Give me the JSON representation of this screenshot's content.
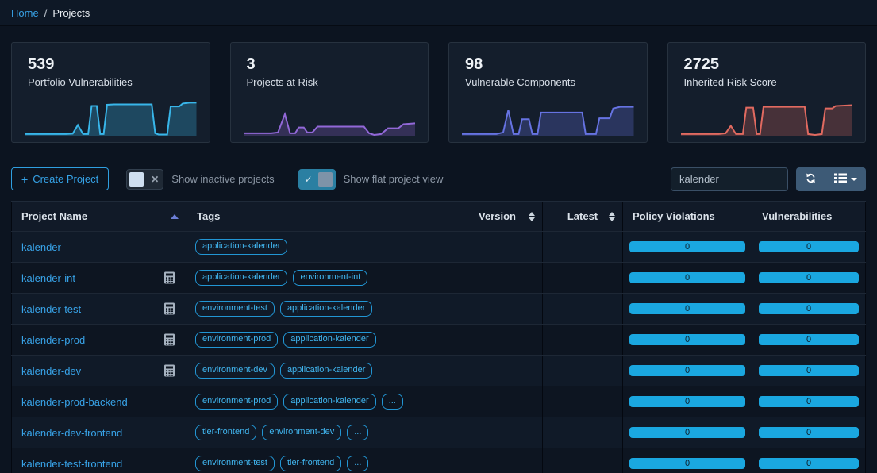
{
  "breadcrumb": {
    "home": "Home",
    "separator": "/",
    "current": "Projects"
  },
  "cards": [
    {
      "value": "539",
      "label": "Portfolio Vulnerabilities"
    },
    {
      "value": "3",
      "label": "Projects at Risk"
    },
    {
      "value": "98",
      "label": "Vulnerable Components"
    },
    {
      "value": "2725",
      "label": "Inherited Risk Score"
    }
  ],
  "chart_data": [
    {
      "type": "area",
      "series_label": "Portfolio Vulnerabilities",
      "color": "#38b6ea",
      "fill_opacity": 0.28,
      "x_range": [
        0,
        100
      ],
      "y_range": [
        0,
        100
      ],
      "points": [
        [
          0,
          4
        ],
        [
          24,
          4
        ],
        [
          28,
          5
        ],
        [
          31,
          26
        ],
        [
          34,
          4
        ],
        [
          37,
          4
        ],
        [
          39,
          72
        ],
        [
          42,
          72
        ],
        [
          44,
          4
        ],
        [
          46,
          4
        ],
        [
          48,
          75
        ],
        [
          52,
          76
        ],
        [
          74,
          76
        ],
        [
          76,
          6
        ],
        [
          78,
          3
        ],
        [
          83,
          3
        ],
        [
          85,
          71
        ],
        [
          90,
          71
        ],
        [
          92,
          78
        ],
        [
          96,
          80
        ],
        [
          100,
          80
        ]
      ]
    },
    {
      "type": "area",
      "series_label": "Projects at Risk",
      "color": "#9268d8",
      "fill_opacity": 0.25,
      "x_range": [
        0,
        100
      ],
      "y_range": [
        0,
        100
      ],
      "points": [
        [
          0,
          6
        ],
        [
          16,
          6
        ],
        [
          20,
          8
        ],
        [
          24,
          52
        ],
        [
          27,
          6
        ],
        [
          30,
          6
        ],
        [
          32,
          20
        ],
        [
          35,
          20
        ],
        [
          37,
          8
        ],
        [
          40,
          8
        ],
        [
          43,
          22
        ],
        [
          70,
          22
        ],
        [
          73,
          6
        ],
        [
          76,
          2
        ],
        [
          80,
          4
        ],
        [
          84,
          18
        ],
        [
          90,
          18
        ],
        [
          93,
          28
        ],
        [
          100,
          30
        ]
      ]
    },
    {
      "type": "area",
      "series_label": "Vulnerable Components",
      "color": "#6673e2",
      "fill_opacity": 0.28,
      "x_range": [
        0,
        100
      ],
      "y_range": [
        0,
        100
      ],
      "points": [
        [
          0,
          4
        ],
        [
          20,
          4
        ],
        [
          24,
          8
        ],
        [
          27,
          62
        ],
        [
          30,
          4
        ],
        [
          33,
          4
        ],
        [
          35,
          40
        ],
        [
          39,
          40
        ],
        [
          41,
          4
        ],
        [
          44,
          4
        ],
        [
          46,
          56
        ],
        [
          70,
          56
        ],
        [
          72,
          4
        ],
        [
          76,
          4
        ],
        [
          78,
          4
        ],
        [
          80,
          42
        ],
        [
          86,
          42
        ],
        [
          88,
          66
        ],
        [
          92,
          70
        ],
        [
          100,
          70
        ]
      ]
    },
    {
      "type": "area",
      "series_label": "Inherited Risk Score",
      "color": "#e16a60",
      "fill_opacity": 0.25,
      "x_range": [
        0,
        100
      ],
      "y_range": [
        0,
        100
      ],
      "points": [
        [
          0,
          4
        ],
        [
          22,
          4
        ],
        [
          26,
          6
        ],
        [
          29,
          24
        ],
        [
          32,
          4
        ],
        [
          36,
          4
        ],
        [
          38,
          68
        ],
        [
          42,
          68
        ],
        [
          44,
          4
        ],
        [
          46,
          4
        ],
        [
          48,
          70
        ],
        [
          72,
          70
        ],
        [
          74,
          4
        ],
        [
          78,
          2
        ],
        [
          82,
          4
        ],
        [
          84,
          66
        ],
        [
          88,
          66
        ],
        [
          90,
          72
        ],
        [
          100,
          74
        ]
      ]
    }
  ],
  "toolbar": {
    "create_button": {
      "icon": "+",
      "label": "Create Project"
    },
    "inactive_toggle": {
      "label": "Show inactive projects",
      "state": "off",
      "off_symbol": "✕"
    },
    "flat_toggle": {
      "label": "Show flat project view",
      "state": "on",
      "on_symbol": "✓"
    },
    "search": {
      "value": "kalender"
    },
    "columns_button": {
      "caret": "▾"
    }
  },
  "table": {
    "columns": [
      {
        "label": "Project Name",
        "sorted": "asc"
      },
      {
        "label": "Tags"
      },
      {
        "label": "Version",
        "sortable": true
      },
      {
        "label": "Latest",
        "sortable": true
      },
      {
        "label": "Policy Violations"
      },
      {
        "label": "Vulnerabilities"
      }
    ],
    "rows": [
      {
        "name": "kalender",
        "metrics_icon": false,
        "tags": [
          "application-kalender"
        ],
        "version": "",
        "latest": "",
        "policy_violations": "0",
        "vulnerabilities": "0"
      },
      {
        "name": "kalender-int",
        "metrics_icon": true,
        "tags": [
          "application-kalender",
          "environment-int"
        ],
        "version": "",
        "latest": "",
        "policy_violations": "0",
        "vulnerabilities": "0"
      },
      {
        "name": "kalender-test",
        "metrics_icon": true,
        "tags": [
          "environment-test",
          "application-kalender"
        ],
        "version": "",
        "latest": "",
        "policy_violations": "0",
        "vulnerabilities": "0"
      },
      {
        "name": "kalender-prod",
        "metrics_icon": true,
        "tags": [
          "environment-prod",
          "application-kalender"
        ],
        "version": "",
        "latest": "",
        "policy_violations": "0",
        "vulnerabilities": "0"
      },
      {
        "name": "kalender-dev",
        "metrics_icon": true,
        "tags": [
          "environment-dev",
          "application-kalender"
        ],
        "version": "",
        "latest": "",
        "policy_violations": "0",
        "vulnerabilities": "0"
      },
      {
        "name": "kalender-prod-backend",
        "metrics_icon": false,
        "tags": [
          "environment-prod",
          "application-kalender",
          "..."
        ],
        "version": "",
        "latest": "",
        "policy_violations": "0",
        "vulnerabilities": "0"
      },
      {
        "name": "kalender-dev-frontend",
        "metrics_icon": false,
        "tags": [
          "tier-frontend",
          "environment-dev",
          "..."
        ],
        "version": "",
        "latest": "",
        "policy_violations": "0",
        "vulnerabilities": "0"
      },
      {
        "name": "kalender-test-frontend",
        "metrics_icon": false,
        "tags": [
          "environment-test",
          "tier-frontend",
          "..."
        ],
        "version": "",
        "latest": "",
        "policy_violations": "0",
        "vulnerabilities": "0"
      }
    ]
  }
}
